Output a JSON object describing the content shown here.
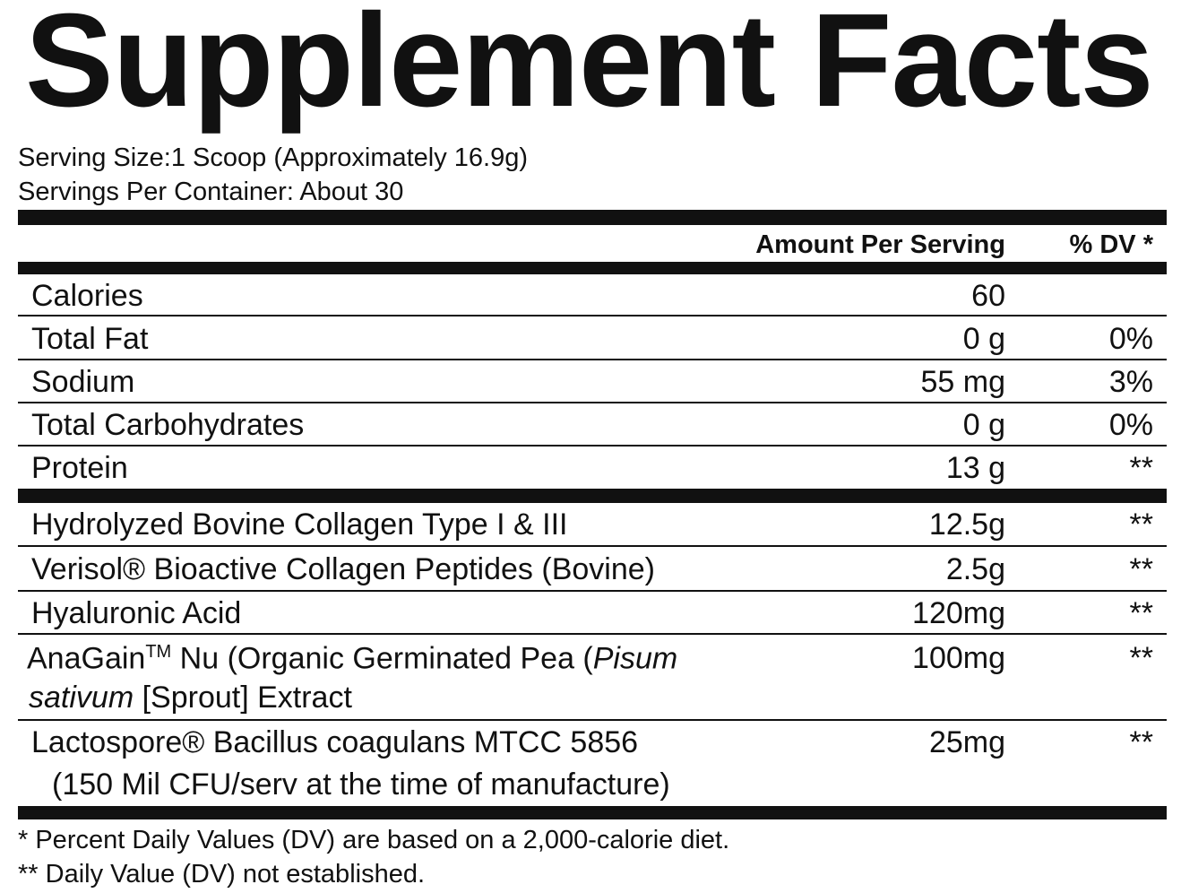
{
  "title": "Supplement Facts",
  "serving_size": "Serving Size:1 Scoop (Approximately 16.9g)",
  "servings_per_container": "Servings Per Container:  About 30",
  "header": {
    "amount": "Amount Per Serving",
    "dv": "% DV *"
  },
  "nutrients": [
    {
      "name": "Calories",
      "amount": "60",
      "dv": ""
    },
    {
      "name": "Total Fat",
      "amount": "0 g",
      "dv": "0%"
    },
    {
      "name": "Sodium",
      "amount": "55 mg",
      "dv": "3%"
    },
    {
      "name": "Total Carbohydrates",
      "amount": "0 g",
      "dv": "0%"
    },
    {
      "name": "Protein",
      "amount": "13 g",
      "dv": "**"
    }
  ],
  "ingredients": [
    {
      "name": "Hydrolyzed Bovine Collagen Type I & III",
      "amount": "12.5g",
      "dv": "**"
    },
    {
      "name": "Verisol® Bioactive Collagen Peptides (Bovine)",
      "amount": "2.5g",
      "dv": "**"
    },
    {
      "name": "Hyaluronic Acid",
      "amount": "120mg",
      "dv": "**"
    },
    {
      "name_a": "AnaGain",
      "tm": "TM",
      "name_b": " Nu (Organic Germinated Pea (",
      "name_italic1": "Pisum",
      "name_italic2": "sativum",
      "name_c": " [Sprout] Extract",
      "amount": "100mg",
      "dv": "**"
    },
    {
      "name": "Lactospore® Bacillus coagulans MTCC 5856",
      "name_line2": "(150 Mil CFU/serv at the time of manufacture)",
      "amount": "25mg",
      "dv": "**"
    }
  ],
  "footnotes": [
    "*  Percent Daily Values (DV) are based on a 2,000-calorie diet.",
    "** Daily Value (DV) not established."
  ]
}
